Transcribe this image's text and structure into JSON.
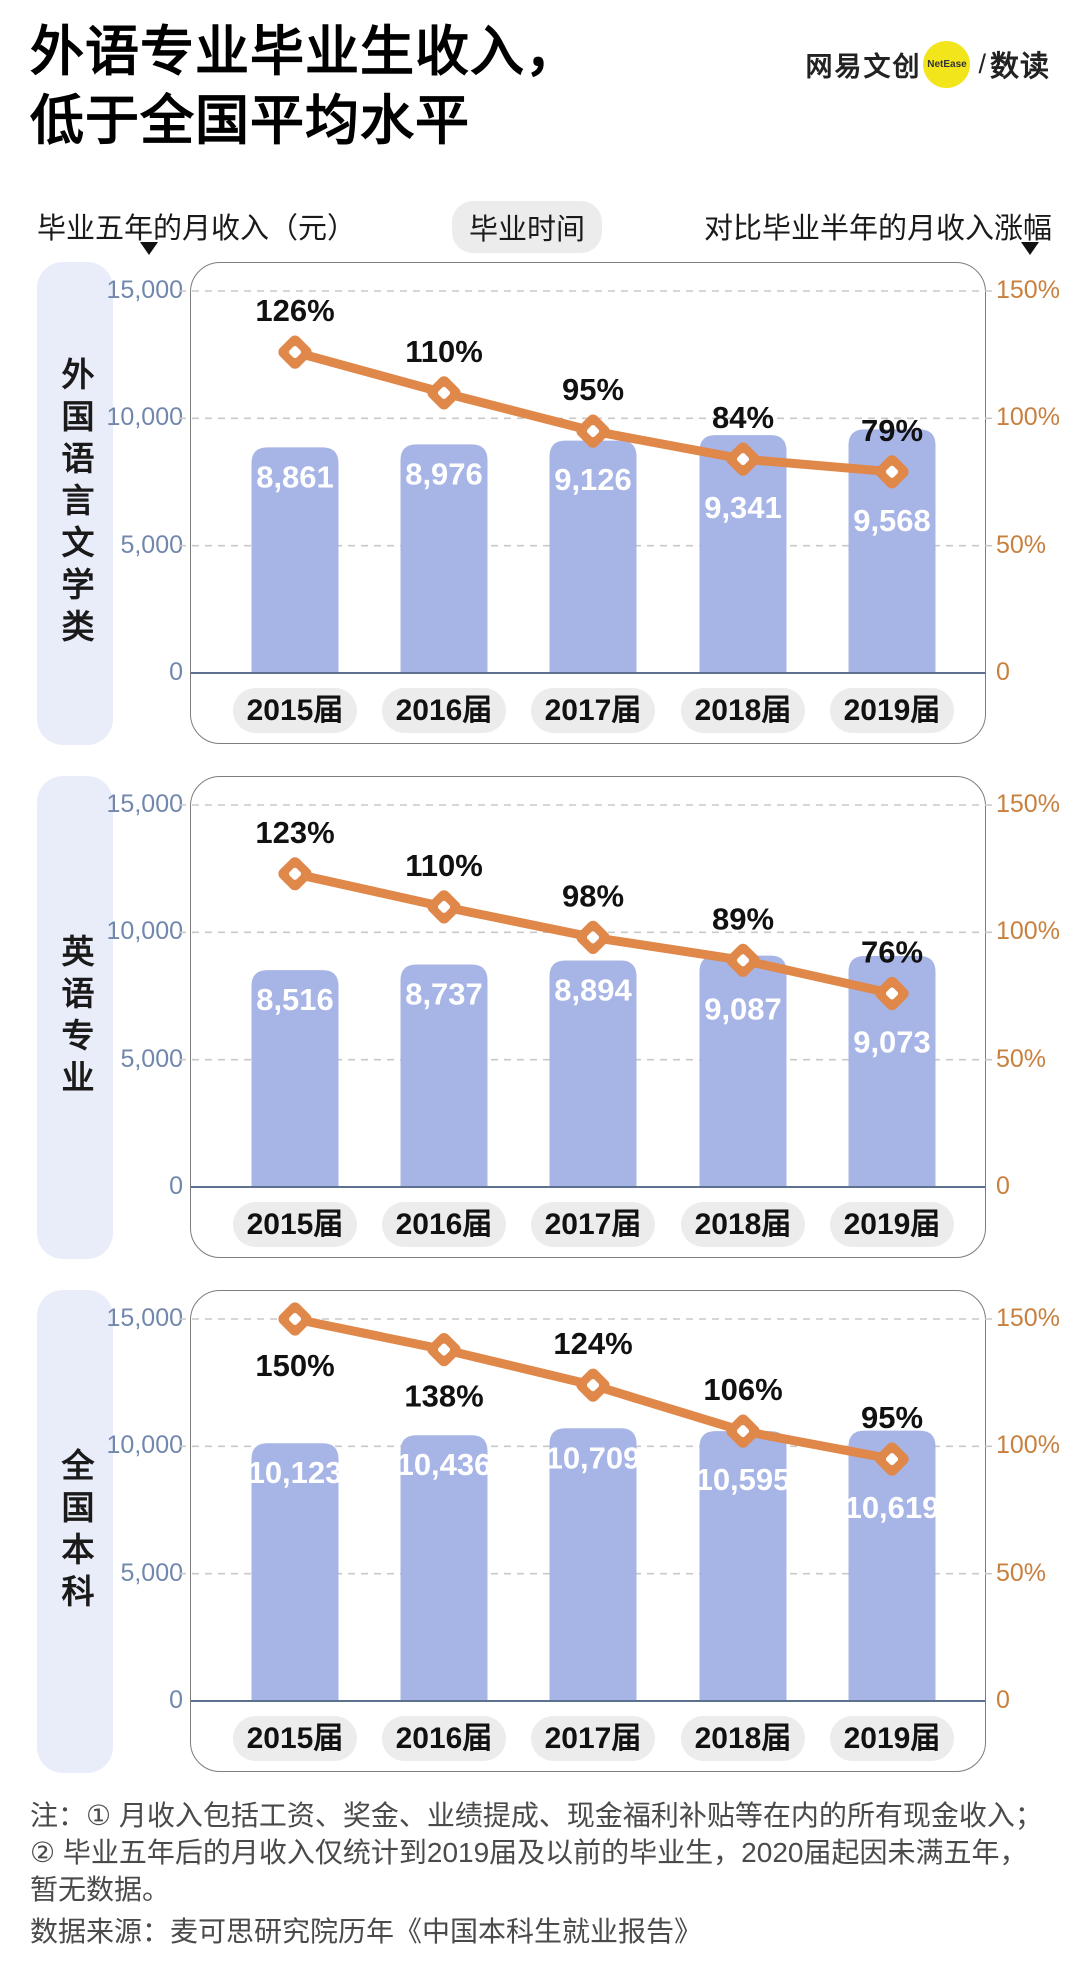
{
  "header": {
    "title_line1": "外语专业毕业生收入，",
    "title_line2": "低于全国平均水平",
    "logo": {
      "brand": "网易文创",
      "badge": "NetEase",
      "slash": "/",
      "sub_brand": "数读"
    }
  },
  "captions": {
    "left": "毕业五年的月收入（元）",
    "center": "毕业时间",
    "right": "对比毕业半年的月收入涨幅"
  },
  "colors": {
    "bar": "#a7b4e6",
    "bar_label": "#ffffff",
    "line": "#e0874a",
    "marker_hole": "#ffffff",
    "pct_label": "#111111",
    "left_tick": "#7187ac",
    "right_tick": "#c8803f",
    "grid": "#c9c9c9",
    "zero_line": "#5e7090",
    "pill_bg": "#ececec",
    "sidebar_bg": "#e9edf9",
    "box_border": "#7d7d7d",
    "logo_yellow": "#f3e51c",
    "note_text": "#4a4a4a"
  },
  "chart_data": [
    {
      "type": "bar",
      "group": "外国语言文学类",
      "categories": [
        "2015届",
        "2016届",
        "2017届",
        "2018届",
        "2019届"
      ],
      "series": [
        {
          "name": "毕业五年的月收入（元）",
          "type": "bar",
          "values": [
            8861,
            8976,
            9126,
            9341,
            9568
          ],
          "labels": [
            "8,861",
            "8,976",
            "9,126",
            "9,341",
            "9,568"
          ]
        },
        {
          "name": "对比毕业半年的月收入涨幅",
          "type": "line",
          "values": [
            126,
            110,
            95,
            84,
            79
          ],
          "labels": [
            "126%",
            "110%",
            "95%",
            "84%",
            "79%"
          ]
        }
      ],
      "left_axis": {
        "ticks": [
          "15,000",
          "10,000",
          "5,000",
          "0"
        ],
        "max": 15000
      },
      "right_axis": {
        "ticks": [
          "150%",
          "100%",
          "50%",
          "0"
        ],
        "max": 150
      },
      "grid": "dashed",
      "legend_position": "none"
    },
    {
      "type": "bar",
      "group": "英语专业",
      "categories": [
        "2015届",
        "2016届",
        "2017届",
        "2018届",
        "2019届"
      ],
      "series": [
        {
          "name": "毕业五年的月收入（元）",
          "type": "bar",
          "values": [
            8516,
            8737,
            8894,
            9087,
            9073
          ],
          "labels": [
            "8,516",
            "8,737",
            "8,894",
            "9,087",
            "9,073"
          ]
        },
        {
          "name": "对比毕业半年的月收入涨幅",
          "type": "line",
          "values": [
            123,
            110,
            98,
            89,
            76
          ],
          "labels": [
            "123%",
            "110%",
            "98%",
            "89%",
            "76%"
          ]
        }
      ],
      "left_axis": {
        "ticks": [
          "15,000",
          "10,000",
          "5,000",
          "0"
        ],
        "max": 15000
      },
      "right_axis": {
        "ticks": [
          "150%",
          "100%",
          "50%",
          "0"
        ],
        "max": 150
      },
      "grid": "dashed",
      "legend_position": "none"
    },
    {
      "type": "bar",
      "group": "全国本科",
      "categories": [
        "2015届",
        "2016届",
        "2017届",
        "2018届",
        "2019届"
      ],
      "series": [
        {
          "name": "毕业五年的月收入（元）",
          "type": "bar",
          "values": [
            10123,
            10436,
            10709,
            10595,
            10619
          ],
          "labels": [
            "10,123",
            "10,436",
            "10,709",
            "10,595",
            "10,619"
          ]
        },
        {
          "name": "对比毕业半年的月收入涨幅",
          "type": "line",
          "values": [
            150,
            138,
            124,
            106,
            95
          ],
          "labels": [
            "150%",
            "138%",
            "124%",
            "106%",
            "95%"
          ]
        }
      ],
      "left_axis": {
        "ticks": [
          "15,000",
          "10,000",
          "5,000",
          "0"
        ],
        "max": 15000
      },
      "right_axis": {
        "ticks": [
          "150%",
          "100%",
          "50%",
          "0"
        ],
        "max": 150
      },
      "grid": "dashed",
      "legend_position": "none"
    }
  ],
  "notes": {
    "lines": [
      "注：① 月收入包括工资、奖金、业绩提成、现金福利补贴等在内的所有现金收入；",
      "② 毕业五年后的月收入仅统计到2019届及以前的毕业生，2020届起因未满五年，",
      "暂无数据。"
    ],
    "source": "数据来源：麦可思研究院历年《中国本科生就业报告》"
  }
}
